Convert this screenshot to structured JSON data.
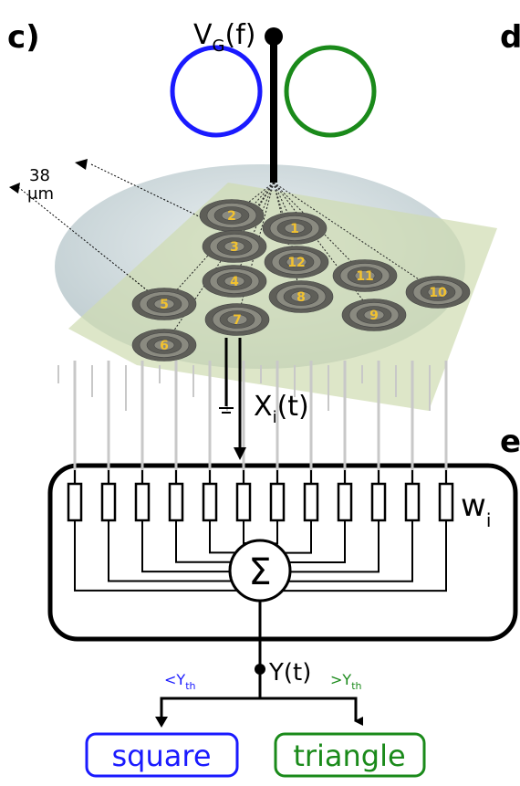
{
  "panel_label": "c)",
  "cropped_labels": [
    "d",
    "e"
  ],
  "gate": {
    "main": "V",
    "sub": "G",
    "tail": "(f)"
  },
  "scale": {
    "value": "38",
    "unit": "μm"
  },
  "electrodes": [
    "1",
    "2",
    "3",
    "4",
    "5",
    "6",
    "7",
    "8",
    "9",
    "10",
    "11",
    "12"
  ],
  "input": {
    "main": "X",
    "sub": "i",
    "tail": "(t)"
  },
  "weight": {
    "main": "w",
    "sub": "i"
  },
  "sum": "Σ",
  "output": "Y(t)",
  "thresholds": [
    {
      "main": "<Y",
      "sub": "th"
    },
    {
      "main": ">Y",
      "sub": "th"
    }
  ],
  "classes": [
    "square",
    "triangle"
  ]
}
